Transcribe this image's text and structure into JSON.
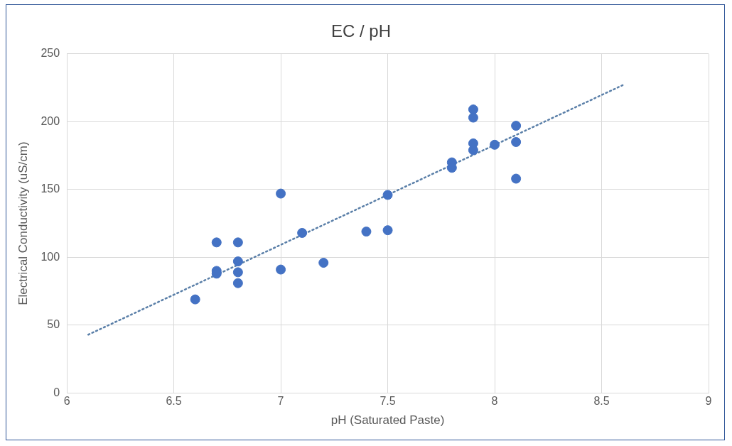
{
  "chart_data": {
    "type": "scatter",
    "title": "EC / pH",
    "xlabel": "pH (Saturated Paste)",
    "ylabel": "Electrical Conductivity (uS/cm)",
    "xlim": [
      6,
      9
    ],
    "xticks": [
      6,
      6.5,
      7,
      7.5,
      8,
      8.5,
      9
    ],
    "ylim": [
      0,
      250
    ],
    "yticks": [
      0,
      50,
      100,
      150,
      200,
      250
    ],
    "grid": true,
    "legend": false,
    "marker": "circle",
    "series": [
      {
        "color": "#4472c4",
        "x": [
          6.6,
          6.7,
          6.7,
          6.7,
          6.8,
          6.8,
          6.8,
          6.8,
          7.0,
          7.0,
          7.1,
          7.2,
          7.4,
          7.5,
          7.5,
          7.8,
          7.8,
          7.9,
          7.9,
          7.9,
          7.9,
          8.0,
          8.1,
          8.1,
          8.1
        ],
        "values": [
          69,
          111,
          90,
          88,
          111,
          97,
          89,
          81,
          147,
          91,
          118,
          96,
          119,
          146,
          120,
          170,
          166,
          209,
          203,
          184,
          179,
          183,
          197,
          185,
          158
        ]
      },
      {
        "type": "line",
        "color": "#5a7fa8",
        "line_style": "dotted",
        "marker": "none",
        "x": [
          6.1,
          8.6
        ],
        "values": [
          43,
          227
        ]
      }
    ]
  }
}
